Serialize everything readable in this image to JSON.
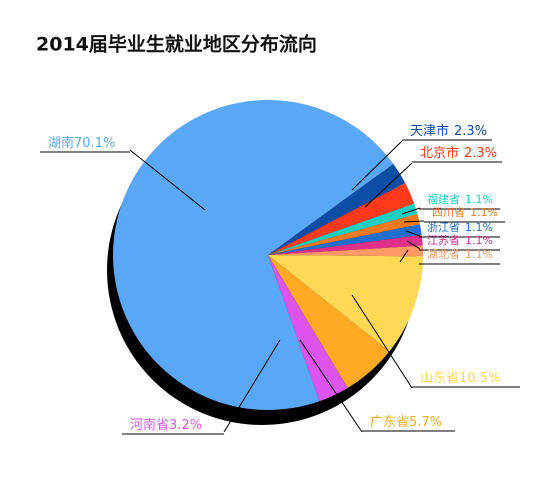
{
  "chart_data": {
    "type": "pie",
    "title": "2014届毕业生就业地区分布流向",
    "categories": [
      "天津市",
      "北京市",
      "福建省",
      "四川省",
      "浙江省",
      "江苏省",
      "湖北省",
      "山东省",
      "广东省",
      "河南省",
      "湖南"
    ],
    "values": [
      2.3,
      2.3,
      1.1,
      1.1,
      1.1,
      1.1,
      1.1,
      10.5,
      5.7,
      3.2,
      70.1
    ],
    "value_labels": [
      "2.3%",
      "2.3%",
      "1.1%",
      "1.1%",
      "1.1%",
      "1.1%",
      "1.1%",
      "10.5%",
      "5.7%",
      "3.2%",
      "70.1%"
    ],
    "colors": [
      "#0c4ea6",
      "#ff3a1a",
      "#1ccfc0",
      "#f07a20",
      "#1f6fd0",
      "#e0308a",
      "#ff9966",
      "#ffd855",
      "#ffaa22",
      "#dd55ee",
      "#5aa8f5"
    ]
  }
}
